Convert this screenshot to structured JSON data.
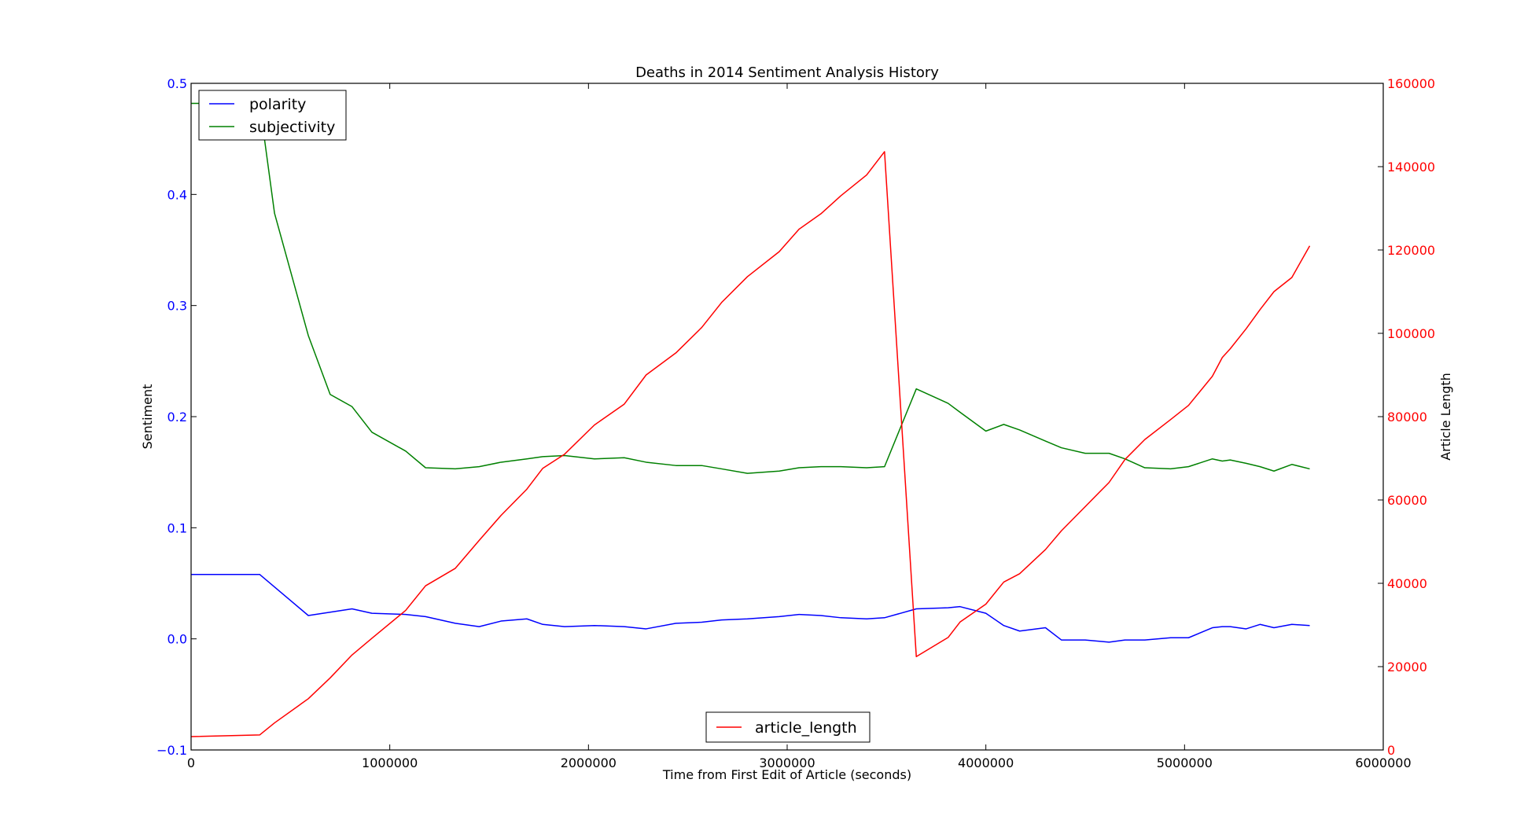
{
  "chart_data": {
    "type": "line",
    "title": "Deaths in 2014 Sentiment Analysis History",
    "xlabel": "Time from First Edit of Article (seconds)",
    "ylabel_left": "Sentiment",
    "ylabel_right": "Article Length",
    "xlim": [
      0,
      6000000
    ],
    "ylim_left": [
      -0.1,
      0.5
    ],
    "ylim_right": [
      0,
      160000
    ],
    "x_ticks": [
      "0",
      "1000000",
      "2000000",
      "3000000",
      "4000000",
      "5000000",
      "6000000"
    ],
    "y_left_ticks": [
      "−0.1",
      "0.0",
      "0.1",
      "0.2",
      "0.3",
      "0.4",
      "0.5"
    ],
    "y_right_ticks": [
      "0",
      "20000",
      "40000",
      "60000",
      "80000",
      "100000",
      "120000",
      "140000",
      "160000"
    ],
    "grid": false,
    "legend_left_placement": "upper-left",
    "legend_right_placement": "lower-center",
    "series": [
      {
        "name": "polarity",
        "axis": "left",
        "color": "#0000ff",
        "points": [
          [
            0,
            0.058
          ],
          [
            345000,
            0.058
          ],
          [
            590000,
            0.021
          ],
          [
            700000,
            0.024
          ],
          [
            810000,
            0.027
          ],
          [
            910000,
            0.023
          ],
          [
            1080000,
            0.022
          ],
          [
            1180000,
            0.02
          ],
          [
            1330000,
            0.014
          ],
          [
            1450000,
            0.011
          ],
          [
            1560000,
            0.016
          ],
          [
            1690000,
            0.018
          ],
          [
            1770000,
            0.013
          ],
          [
            1880000,
            0.011
          ],
          [
            2030000,
            0.012
          ],
          [
            2180000,
            0.011
          ],
          [
            2290000,
            0.009
          ],
          [
            2440000,
            0.014
          ],
          [
            2570000,
            0.015
          ],
          [
            2670000,
            0.017
          ],
          [
            2800000,
            0.018
          ],
          [
            2960000,
            0.02
          ],
          [
            3060000,
            0.022
          ],
          [
            3170000,
            0.021
          ],
          [
            3270000,
            0.019
          ],
          [
            3400000,
            0.018
          ],
          [
            3490000,
            0.019
          ],
          [
            3650000,
            0.027
          ],
          [
            3810000,
            0.028
          ],
          [
            3870000,
            0.029
          ],
          [
            4000000,
            0.023
          ],
          [
            4090000,
            0.012
          ],
          [
            4170000,
            0.007
          ],
          [
            4300000,
            0.01
          ],
          [
            4380000,
            -0.001
          ],
          [
            4500000,
            -0.001
          ],
          [
            4620000,
            -0.003
          ],
          [
            4700000,
            -0.001
          ],
          [
            4800000,
            -0.001
          ],
          [
            4930000,
            0.001
          ],
          [
            5020000,
            0.001
          ],
          [
            5140000,
            0.01
          ],
          [
            5190000,
            0.011
          ],
          [
            5230000,
            0.011
          ],
          [
            5310000,
            0.009
          ],
          [
            5380000,
            0.013
          ],
          [
            5450000,
            0.01
          ],
          [
            5540000,
            0.013
          ],
          [
            5630000,
            0.012
          ]
        ]
      },
      {
        "name": "subjectivity",
        "axis": "left",
        "color": "#008000",
        "points": [
          [
            0,
            0.482
          ],
          [
            345000,
            0.482
          ],
          [
            420000,
            0.383
          ],
          [
            590000,
            0.273
          ],
          [
            700000,
            0.22
          ],
          [
            810000,
            0.209
          ],
          [
            910000,
            0.186
          ],
          [
            1080000,
            0.169
          ],
          [
            1180000,
            0.154
          ],
          [
            1330000,
            0.153
          ],
          [
            1450000,
            0.155
          ],
          [
            1560000,
            0.159
          ],
          [
            1690000,
            0.162
          ],
          [
            1770000,
            0.164
          ],
          [
            1880000,
            0.165
          ],
          [
            2030000,
            0.162
          ],
          [
            2180000,
            0.163
          ],
          [
            2290000,
            0.159
          ],
          [
            2440000,
            0.156
          ],
          [
            2570000,
            0.156
          ],
          [
            2670000,
            0.153
          ],
          [
            2800000,
            0.149
          ],
          [
            2960000,
            0.151
          ],
          [
            3060000,
            0.154
          ],
          [
            3170000,
            0.155
          ],
          [
            3270000,
            0.155
          ],
          [
            3400000,
            0.154
          ],
          [
            3490000,
            0.155
          ],
          [
            3650000,
            0.225
          ],
          [
            3810000,
            0.212
          ],
          [
            3870000,
            0.204
          ],
          [
            4000000,
            0.187
          ],
          [
            4090000,
            0.193
          ],
          [
            4170000,
            0.188
          ],
          [
            4300000,
            0.178
          ],
          [
            4380000,
            0.172
          ],
          [
            4500000,
            0.167
          ],
          [
            4620000,
            0.167
          ],
          [
            4700000,
            0.162
          ],
          [
            4800000,
            0.154
          ],
          [
            4930000,
            0.153
          ],
          [
            5020000,
            0.155
          ],
          [
            5140000,
            0.162
          ],
          [
            5190000,
            0.16
          ],
          [
            5230000,
            0.161
          ],
          [
            5310000,
            0.158
          ],
          [
            5380000,
            0.155
          ],
          [
            5450000,
            0.151
          ],
          [
            5540000,
            0.157
          ],
          [
            5630000,
            0.153
          ]
        ]
      },
      {
        "name": "article_length",
        "axis": "right",
        "color": "#ff0000",
        "points": [
          [
            0,
            3200
          ],
          [
            345000,
            3600
          ],
          [
            420000,
            6500
          ],
          [
            590000,
            12300
          ],
          [
            700000,
            17300
          ],
          [
            810000,
            22800
          ],
          [
            910000,
            26800
          ],
          [
            1080000,
            33500
          ],
          [
            1180000,
            39400
          ],
          [
            1330000,
            43600
          ],
          [
            1450000,
            50300
          ],
          [
            1560000,
            56300
          ],
          [
            1690000,
            62600
          ],
          [
            1770000,
            67600
          ],
          [
            1880000,
            71000
          ],
          [
            2030000,
            78000
          ],
          [
            2180000,
            83000
          ],
          [
            2290000,
            90000
          ],
          [
            2440000,
            95300
          ],
          [
            2570000,
            101400
          ],
          [
            2670000,
            107400
          ],
          [
            2800000,
            113600
          ],
          [
            2960000,
            119600
          ],
          [
            3060000,
            125000
          ],
          [
            3170000,
            128700
          ],
          [
            3270000,
            133000
          ],
          [
            3400000,
            138000
          ],
          [
            3490000,
            143600
          ],
          [
            3650000,
            22400
          ],
          [
            3810000,
            27000
          ],
          [
            3870000,
            30700
          ],
          [
            4000000,
            35000
          ],
          [
            4090000,
            40300
          ],
          [
            4170000,
            42300
          ],
          [
            4300000,
            48100
          ],
          [
            4380000,
            52600
          ],
          [
            4500000,
            58400
          ],
          [
            4620000,
            64200
          ],
          [
            4700000,
            69700
          ],
          [
            4800000,
            74500
          ],
          [
            4930000,
            79300
          ],
          [
            5020000,
            82700
          ],
          [
            5140000,
            89700
          ],
          [
            5190000,
            94200
          ],
          [
            5230000,
            96300
          ],
          [
            5310000,
            101100
          ],
          [
            5380000,
            105700
          ],
          [
            5450000,
            110000
          ],
          [
            5540000,
            113400
          ],
          [
            5630000,
            121000
          ]
        ]
      }
    ]
  }
}
